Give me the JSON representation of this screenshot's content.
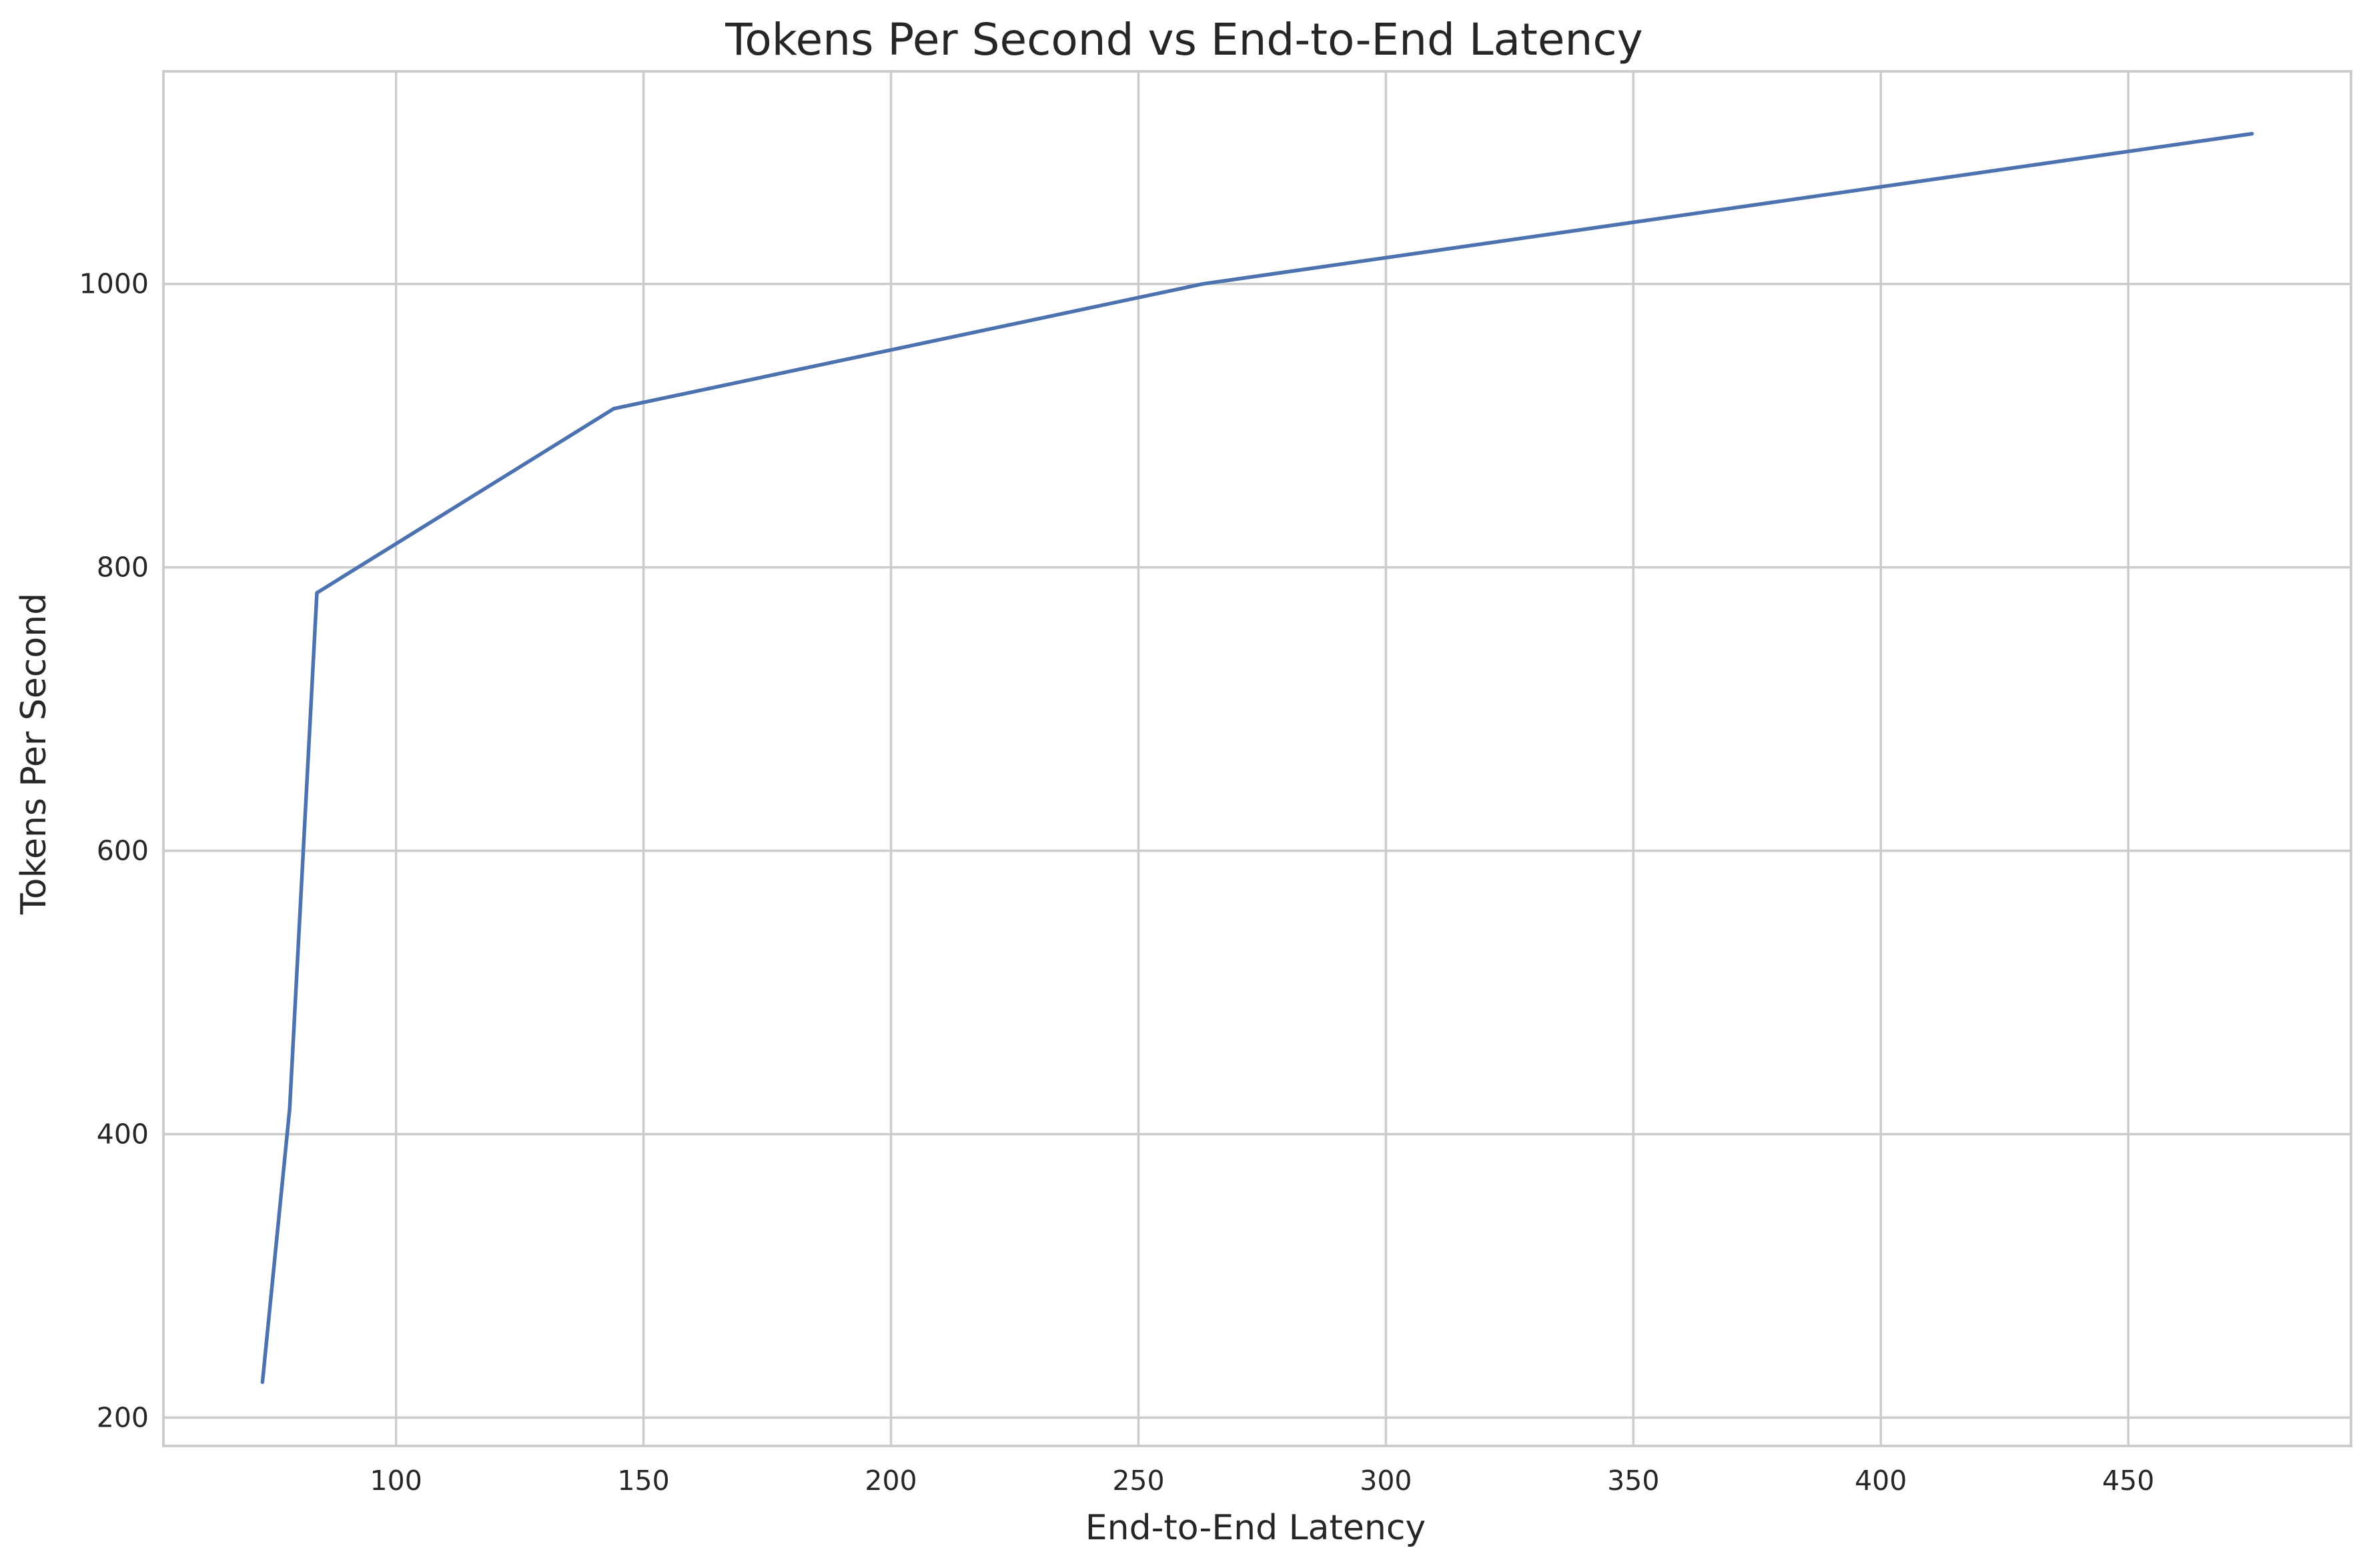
{
  "colors": {
    "series": "#4c72b0",
    "grid": "#cccccc",
    "text": "#262626",
    "background": "#ffffff"
  },
  "chart_data": {
    "type": "line",
    "title": "Tokens Per Second vs End-to-End Latency",
    "xlabel": "End-to-End Latency",
    "ylabel": "Tokens Per Second",
    "xlim": [
      53,
      495
    ],
    "ylim": [
      180,
      1150
    ],
    "xticks": [
      100,
      150,
      200,
      250,
      300,
      350,
      400,
      450
    ],
    "yticks": [
      200,
      400,
      600,
      800,
      1000
    ],
    "grid": true,
    "legend": "none",
    "series": [
      {
        "x": [
          73,
          78.5,
          84,
          144,
          263,
          475
        ],
        "y": [
          225,
          418,
          782,
          912,
          1000,
          1106
        ]
      }
    ]
  }
}
